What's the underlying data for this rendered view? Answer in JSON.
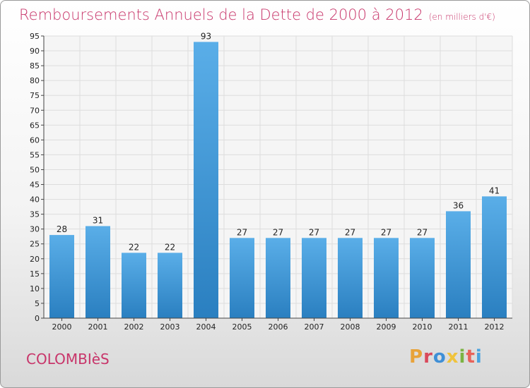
{
  "header": {
    "title": "Remboursements Annuels de la Dette de 2000 à 2012",
    "unit": "(en milliers d'€)"
  },
  "footer": {
    "commune": "COLOMBIèS",
    "brand": "Proxiti",
    "brand_colors": [
      "#e8a33a",
      "#d9495b",
      "#3f8fd6",
      "#f0c33c",
      "#7cb342",
      "#e8625a",
      "#4aa3df"
    ]
  },
  "chart_data": {
    "type": "bar",
    "categories": [
      "2000",
      "2001",
      "2002",
      "2003",
      "2004",
      "2005",
      "2006",
      "2007",
      "2008",
      "2009",
      "2010",
      "2011",
      "2012"
    ],
    "values": [
      28,
      31,
      22,
      22,
      93,
      27,
      27,
      27,
      27,
      27,
      27,
      36,
      41
    ],
    "ylim": [
      0,
      95
    ],
    "yticks": [
      0,
      5,
      10,
      15,
      20,
      25,
      30,
      35,
      40,
      45,
      50,
      55,
      60,
      65,
      70,
      75,
      80,
      85,
      90,
      95
    ],
    "grid": true,
    "bar_color_top": "#5aaee8",
    "bar_color_bottom": "#2a7fc0"
  }
}
